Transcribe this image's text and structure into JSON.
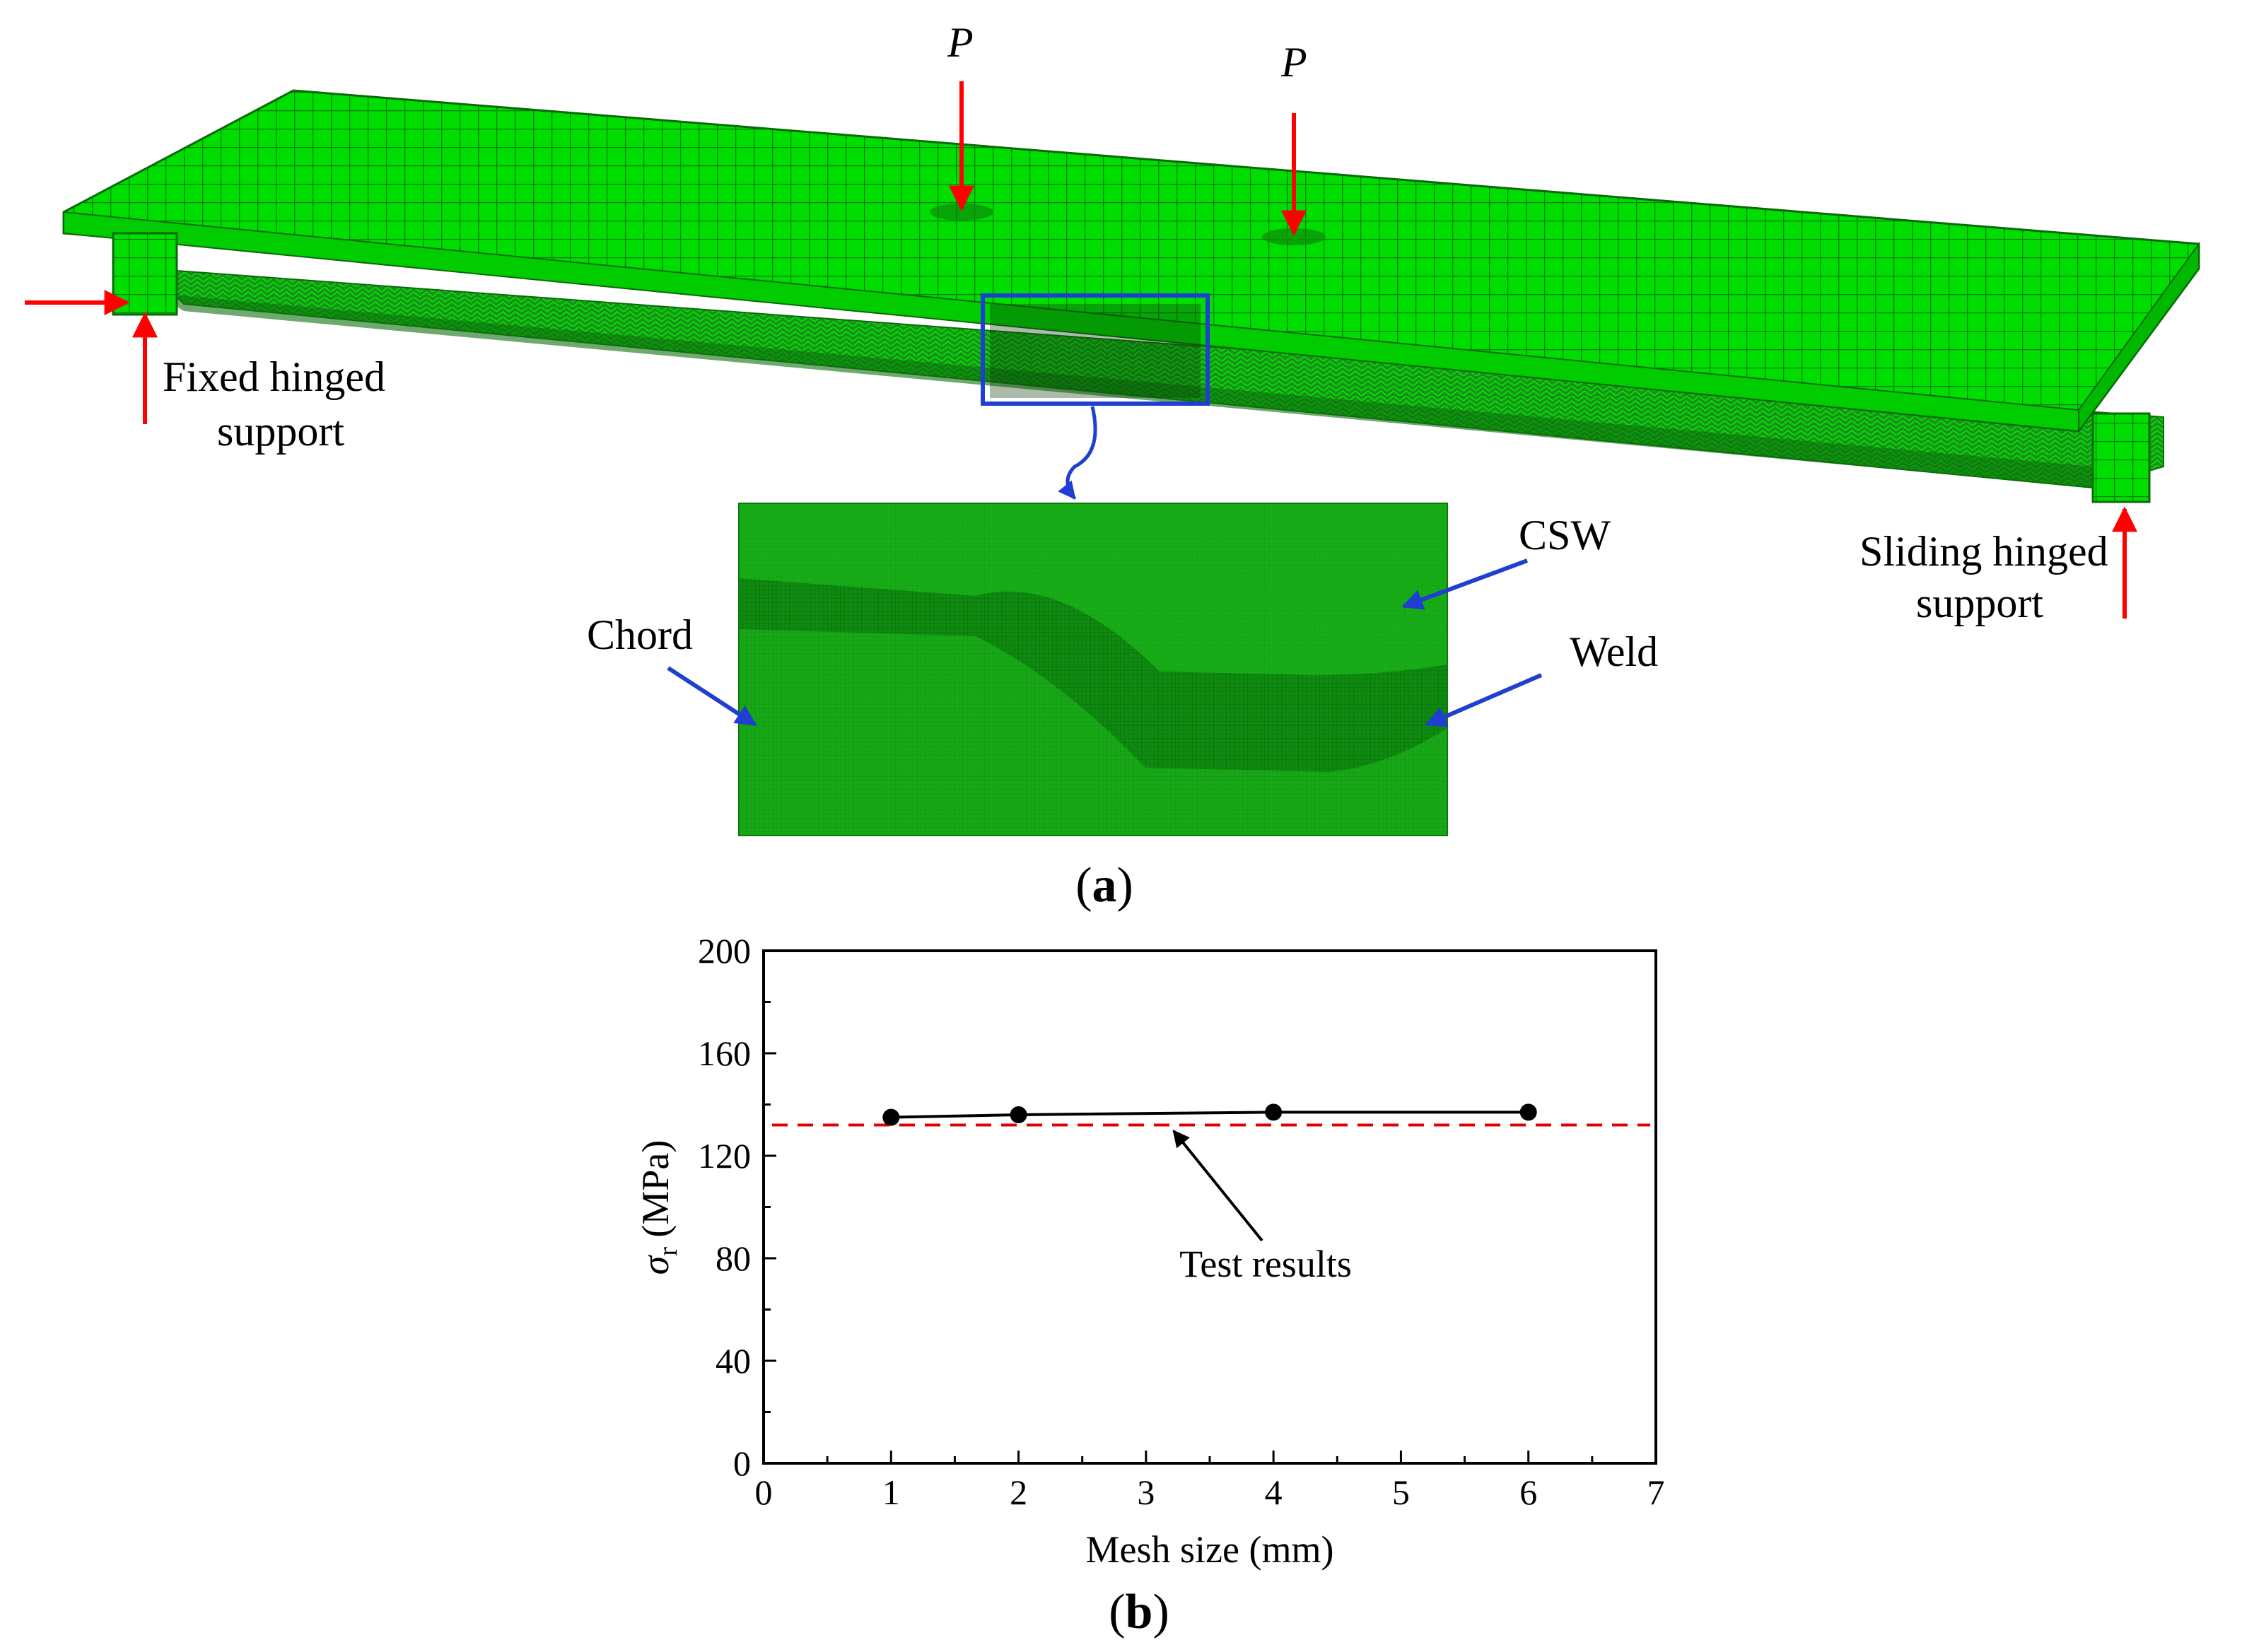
{
  "panel_a": {
    "panel_label_open": "(",
    "panel_label_letter": "a",
    "panel_label_close": ")",
    "load_label_1": "P",
    "load_label_2": "P",
    "fixed_support_line1": "Fixed hinged",
    "fixed_support_line2": "support",
    "sliding_support_line1": "Sliding hinged",
    "sliding_support_line2": "support",
    "chord_label": "Chord",
    "csw_label": "CSW",
    "weld_label": "Weld"
  },
  "panel_b": {
    "panel_label_open": "(",
    "panel_label_letter": "b",
    "panel_label_close": ")"
  },
  "colors": {
    "mesh_green": "#00d800",
    "mesh_line": "#0a7a0a",
    "zoom_green": "#18a818",
    "load_arrow": "#ff0000",
    "callout_blue": "#1f3fd0",
    "test_line": "#e00000"
  },
  "chart_data": {
    "type": "line",
    "x": [
      1,
      2,
      4,
      6
    ],
    "series": [
      {
        "values": [
          135,
          136,
          137,
          137
        ]
      }
    ],
    "reference_line": {
      "y": 132
    },
    "annotation": "Test results",
    "xlabel": "Mesh size (mm)",
    "ylabel_symbol": "σ",
    "ylabel_subscript": "r",
    "ylabel_unit": " (MPa)",
    "xlim": [
      0,
      7
    ],
    "ylim": [
      0,
      200
    ],
    "xticks": [
      "0",
      "1",
      "2",
      "3",
      "4",
      "5",
      "6",
      "7"
    ],
    "yticks": [
      "0",
      "40",
      "80",
      "120",
      "160",
      "200"
    ],
    "grid": false,
    "legend": "none"
  }
}
